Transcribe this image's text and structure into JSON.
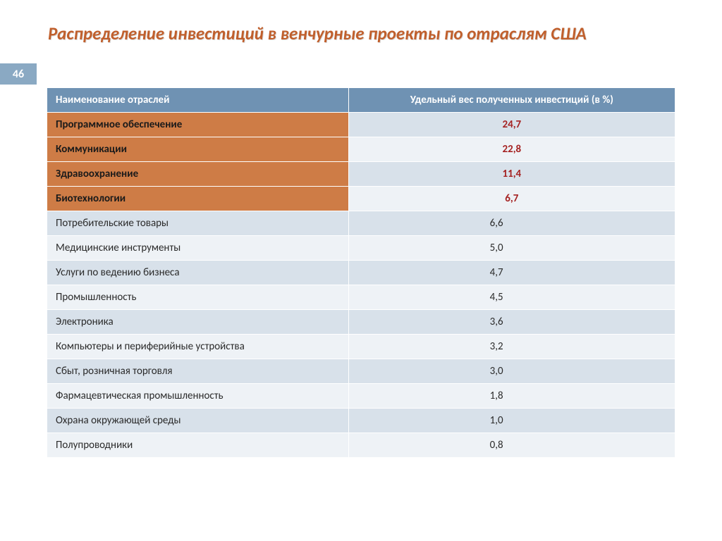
{
  "slide_number": "46",
  "title": "Распределение инвестиций в венчурные проекты по отраслям США",
  "table": {
    "columns": [
      "Наименование отраслей",
      "Удельный вес полученных инвестиций (в %)"
    ],
    "rows": [
      {
        "name": "Программное обеспечение",
        "value": "24,7",
        "highlight": true
      },
      {
        "name": "Коммуникации",
        "value": "22,8",
        "highlight": true
      },
      {
        "name": "Здравоохранение",
        "value": "11,4",
        "highlight": true
      },
      {
        "name": "Биотехнологии",
        "value": "6,7",
        "highlight": true
      },
      {
        "name": "Потребительские товары",
        "value": "6,6",
        "highlight": false
      },
      {
        "name": "Медицинские инструменты",
        "value": "5,0",
        "highlight": false
      },
      {
        "name": "Услуги по ведению бизнеса",
        "value": "4,7",
        "highlight": false
      },
      {
        "name": "Промышленность",
        "value": "4,5",
        "highlight": false
      },
      {
        "name": "Электроника",
        "value": "3,6",
        "highlight": false
      },
      {
        "name": "Компьютеры и периферийные устройства",
        "value": "3,2",
        "highlight": false
      },
      {
        "name": "Сбыт, розничная торговля",
        "value": "3,0",
        "highlight": false
      },
      {
        "name": "Фармацевтическая промышленность",
        "value": "1,8",
        "highlight": false
      },
      {
        "name": "Охрана окружающей среды",
        "value": "1,0",
        "highlight": false
      },
      {
        "name": "Полупроводники",
        "value": "0,8",
        "highlight": false
      }
    ]
  },
  "colors": {
    "title_color": "#c05f2c",
    "header_bg": "#6f92b3",
    "header_fg": "#ffffff",
    "row_alt_bg": "#d8e1ea",
    "row_nor_bg": "#eef2f6",
    "highlight_name_bg": "#ce7c46",
    "highlight_val_fg": "#a52222",
    "slide_num_bg": "#8aa9c3"
  }
}
